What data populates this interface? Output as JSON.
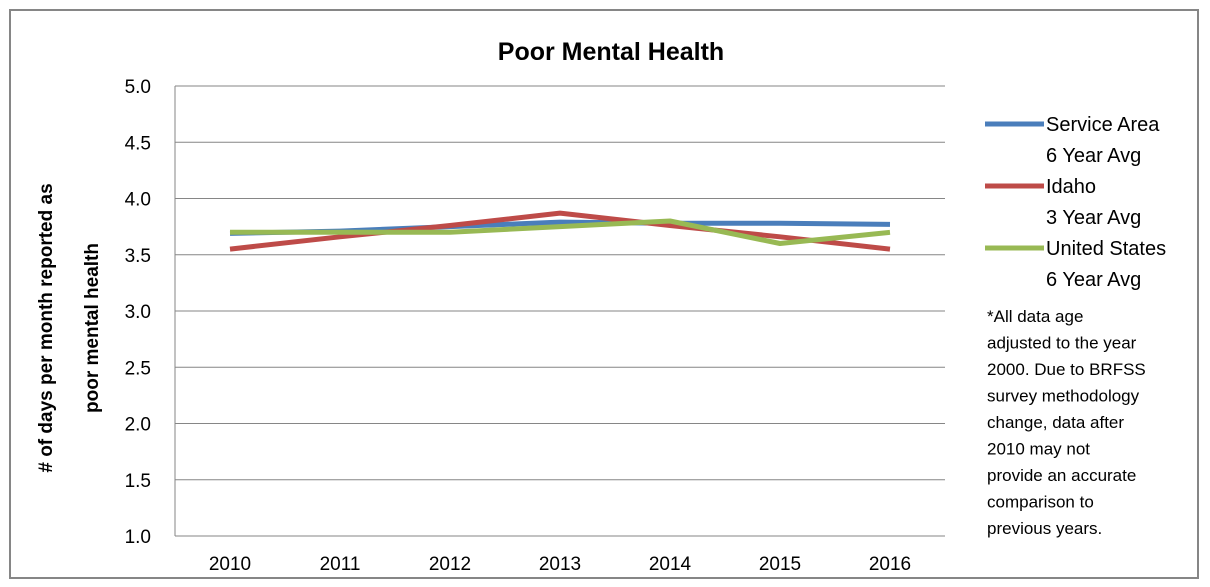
{
  "chart_data": {
    "type": "line",
    "title": "Poor Mental Health",
    "ylabel_lines": [
      "# of days per month reported as",
      "poor mental health"
    ],
    "xlabel": "",
    "categories": [
      "2010",
      "2011",
      "2012",
      "2013",
      "2014",
      "2015",
      "2016"
    ],
    "ylim": [
      1.0,
      5.0
    ],
    "yticks": [
      "1.0",
      "1.5",
      "2.0",
      "2.5",
      "3.0",
      "3.5",
      "4.0",
      "4.5",
      "5.0"
    ],
    "grid": true,
    "legend_position": "right",
    "series": [
      {
        "name": "Service Area",
        "sublabel": "6 Year Avg",
        "color": "#4a7ebb",
        "values": [
          3.69,
          3.71,
          3.75,
          3.79,
          3.78,
          3.78,
          3.77
        ]
      },
      {
        "name": "Idaho",
        "sublabel": "3 Year Avg",
        "color": "#be4b48",
        "values": [
          3.55,
          3.66,
          3.76,
          3.87,
          3.76,
          3.66,
          3.55
        ]
      },
      {
        "name": "United States",
        "sublabel": "6 Year Avg",
        "color": "#98b954",
        "values": [
          3.7,
          3.7,
          3.7,
          3.75,
          3.8,
          3.6,
          3.7
        ]
      }
    ],
    "note_lines": [
      "*All data age",
      "adjusted to the year",
      "2000. Due to BRFSS",
      "survey methodology",
      "change, data after",
      "2010 may not",
      "provide an accurate",
      "comparison to",
      "previous years."
    ]
  }
}
